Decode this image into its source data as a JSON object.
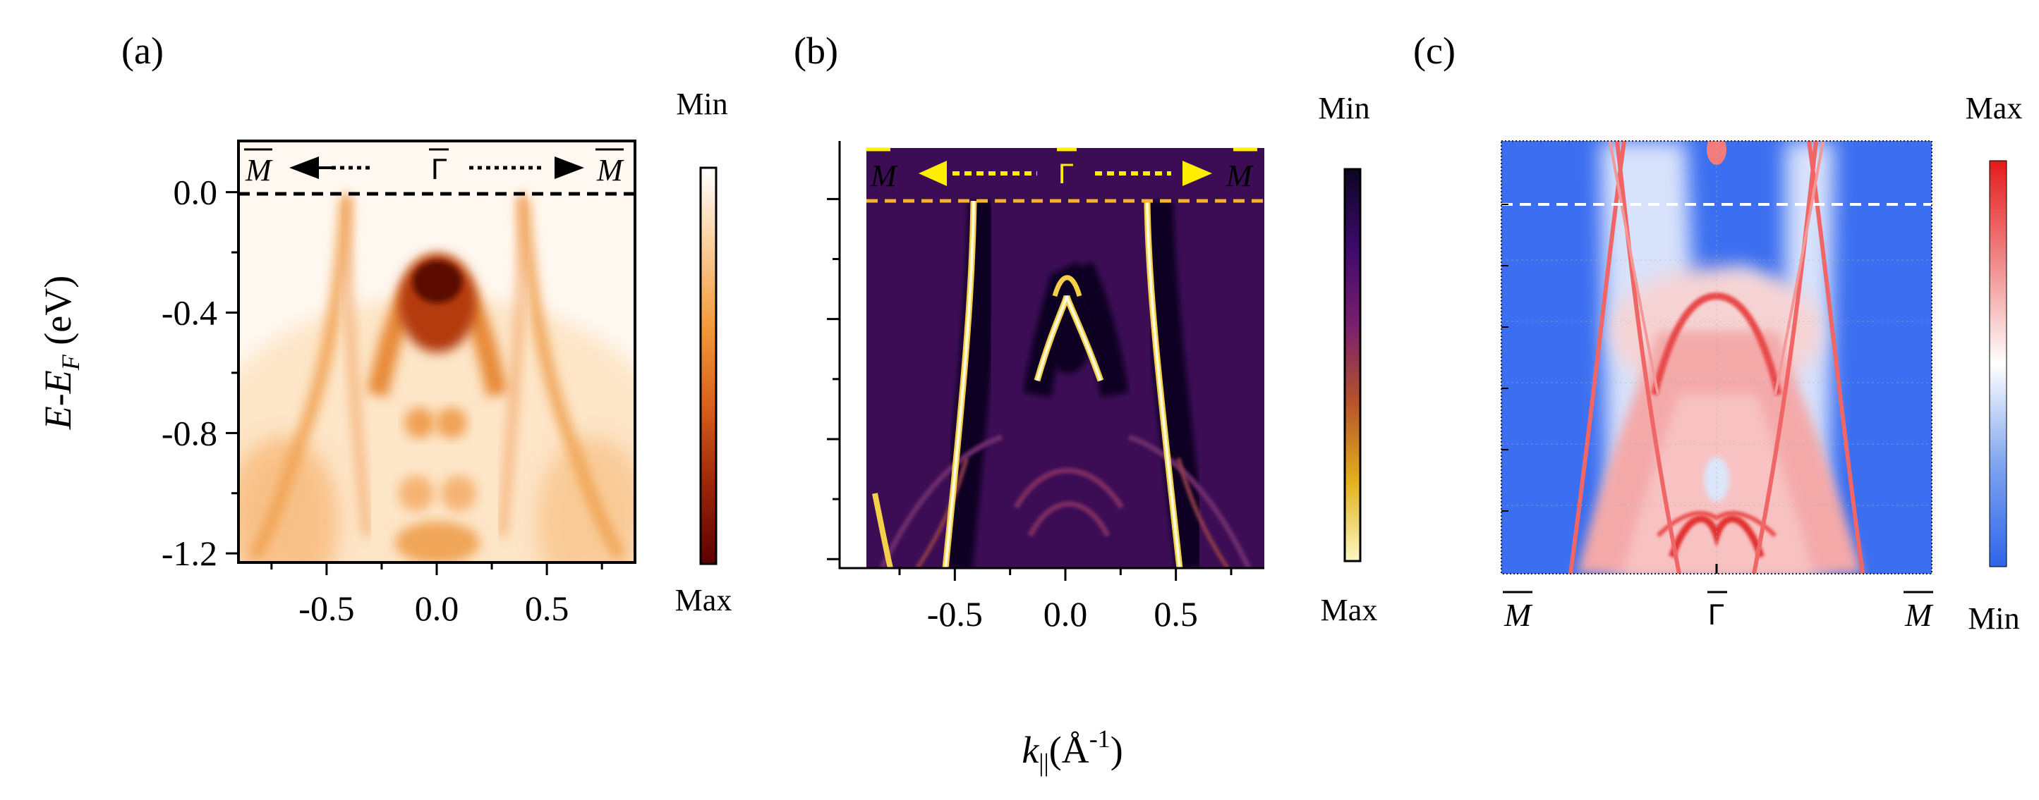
{
  "figure": {
    "panel_labels": [
      "(a)",
      "(b)",
      "(c)"
    ],
    "shared_y_label": {
      "main": "E-E",
      "sub": "F",
      "units": " (eV)"
    },
    "shared_x_label": {
      "main": "k",
      "sub": "||",
      "units_pre": "(Å",
      "sup": "-1",
      "units_post": ")"
    }
  },
  "chart_data": [
    {
      "type": "heatmap",
      "panel": "(a)",
      "colormap": "white-orange-darkred",
      "x_ticks": [
        "-0.5",
        "0.0",
        "0.5"
      ],
      "x_tick_values": [
        -0.5,
        0.0,
        0.5
      ],
      "y_ticks": [
        "0.0",
        "-0.4",
        "-0.8",
        "-1.2"
      ],
      "y_tick_values": [
        0.0,
        -0.4,
        -0.8,
        -1.2
      ],
      "xlim": [
        -0.9,
        0.9
      ],
      "ylim": [
        -1.23,
        0.17
      ],
      "fermi_level": 0.0,
      "kpath": {
        "left": "M",
        "center": "Γ",
        "right": "M"
      },
      "colorbar": {
        "top": "Min",
        "bottom": "Max",
        "colors": [
          "#ffffff",
          "#fbcd9a",
          "#f39a3a",
          "#d9601a",
          "#9c2508",
          "#5c0000"
        ]
      },
      "accent_colors": {
        "arrows": "#000000",
        "fermi_line": "#000000"
      }
    },
    {
      "type": "heatmap",
      "panel": "(b)",
      "colormap": "inferno-reversed (curvature)",
      "x_ticks": [
        "-0.5",
        "0.0",
        "0.5"
      ],
      "x_tick_values": [
        -0.5,
        0.0,
        0.5
      ],
      "y_tick_values": [
        0.0,
        -0.4,
        -0.8,
        -1.2
      ],
      "xlim": [
        -0.9,
        0.9
      ],
      "ylim": [
        -1.23,
        0.17
      ],
      "fermi_level": 0.0,
      "kpath": {
        "left": "M",
        "center": "Γ",
        "right": "M"
      },
      "colorbar": {
        "top": "Min",
        "bottom": "Max",
        "colors": [
          "#0b0523",
          "#3d0a6b",
          "#7a1f6e",
          "#b8552a",
          "#e3b21c",
          "#fbf7c4"
        ]
      },
      "accent_colors": {
        "arrows": "#ffee00",
        "fermi_line": "#f5b42a",
        "background": "#3c0d55"
      }
    },
    {
      "type": "heatmap",
      "panel": "(c)",
      "colormap": "blue-white-red",
      "kpath": {
        "left": "M",
        "center": "Γ",
        "right": "M"
      },
      "colorbar": {
        "top": "Max",
        "bottom": "Min",
        "colors": [
          "#e41a1c",
          "#f08a8a",
          "#ffffff",
          "#7ea4ee",
          "#2f64ea"
        ]
      },
      "accent_colors": {
        "background": "#3b6ef0",
        "bands": "#f06666",
        "fermi_line": "#ffffff"
      }
    }
  ]
}
